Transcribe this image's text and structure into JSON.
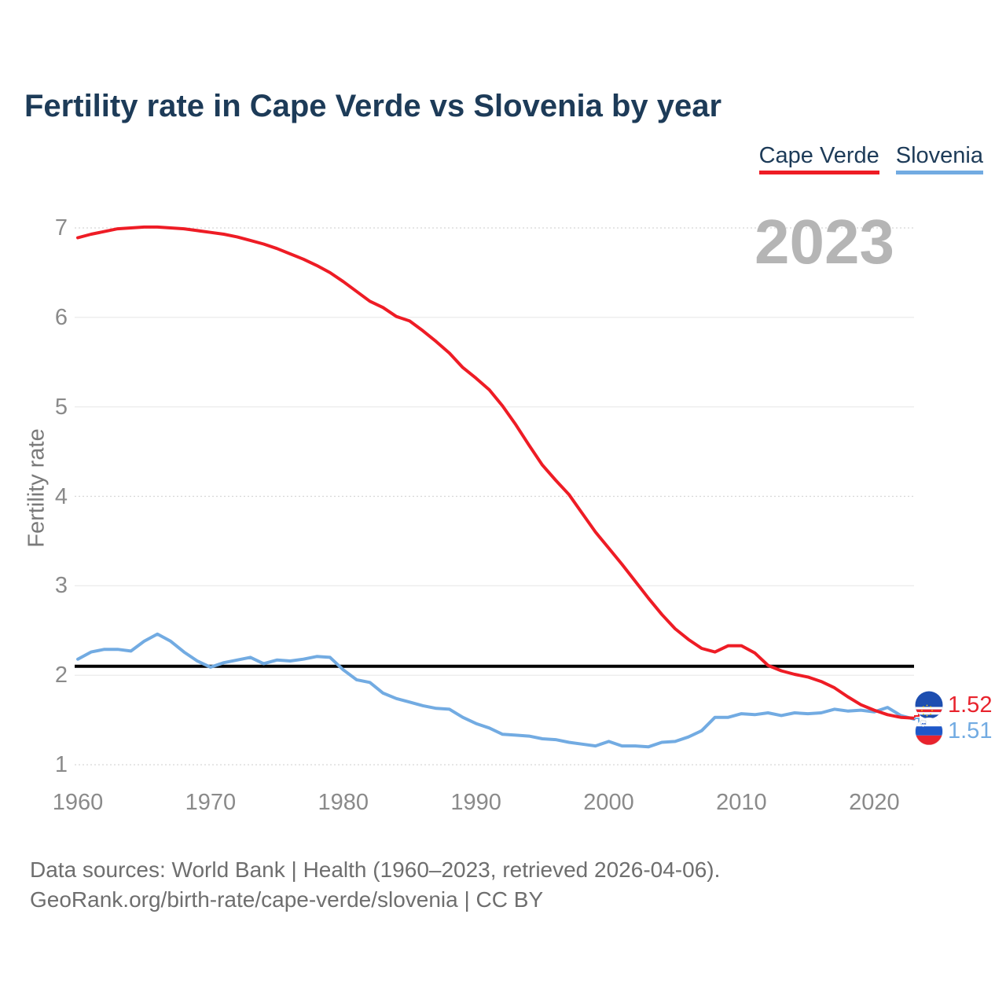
{
  "title": "Fertility rate in Cape Verde vs Slovenia by year",
  "watermark": "2023",
  "legend": {
    "items": [
      {
        "label": "Cape Verde",
        "color": "#ee1c25"
      },
      {
        "label": "Slovenia",
        "color": "#72abe2"
      }
    ]
  },
  "end_labels": {
    "cape_verde": "1.52",
    "slovenia": "1.51"
  },
  "footer": {
    "line1": "Data sources: World Bank | Health (1960–2023, retrieved 2026-04-06).",
    "line2": "GeoRank.org/birth-rate/cape-verde/slovenia | CC BY"
  },
  "colors": {
    "title_text": "#1d3b58",
    "cape_verde": "#ee1c25",
    "slovenia": "#72abe2",
    "reference_line": "#000000",
    "watermark": "#b5b5b5",
    "axis_text": "#8a8a8a"
  },
  "chart_data": {
    "type": "line",
    "title": "Fertility rate in Cape Verde vs Slovenia by year",
    "xlabel": "",
    "ylabel": "Fertility rate",
    "xlim": [
      1960,
      2023
    ],
    "ylim": [
      1,
      7
    ],
    "x_ticks": [
      1960,
      1970,
      1980,
      1990,
      2000,
      2010,
      2020
    ],
    "y_ticks": [
      1,
      2,
      3,
      4,
      5,
      6,
      7
    ],
    "grid": true,
    "legend_position": "top-right",
    "reference_line": {
      "value": 2.1,
      "color": "#000000"
    },
    "years": [
      1960,
      1961,
      1962,
      1963,
      1964,
      1965,
      1966,
      1967,
      1968,
      1969,
      1970,
      1971,
      1972,
      1973,
      1974,
      1975,
      1976,
      1977,
      1978,
      1979,
      1980,
      1981,
      1982,
      1983,
      1984,
      1985,
      1986,
      1987,
      1988,
      1989,
      1990,
      1991,
      1992,
      1993,
      1994,
      1995,
      1996,
      1997,
      1998,
      1999,
      2000,
      2001,
      2002,
      2003,
      2004,
      2005,
      2006,
      2007,
      2008,
      2009,
      2010,
      2011,
      2012,
      2013,
      2014,
      2015,
      2016,
      2017,
      2018,
      2019,
      2020,
      2021,
      2022,
      2023
    ],
    "series": [
      {
        "name": "Cape Verde",
        "color": "#ee1c25",
        "end_label": "1.52",
        "values": [
          6.89,
          6.93,
          6.96,
          6.99,
          7.0,
          7.01,
          7.01,
          7.0,
          6.99,
          6.97,
          6.95,
          6.93,
          6.9,
          6.86,
          6.82,
          6.77,
          6.71,
          6.65,
          6.58,
          6.5,
          6.4,
          6.29,
          6.18,
          6.11,
          6.01,
          5.96,
          5.85,
          5.73,
          5.6,
          5.44,
          5.32,
          5.19,
          5.01,
          4.8,
          4.57,
          4.35,
          4.18,
          4.02,
          3.81,
          3.6,
          3.42,
          3.24,
          3.05,
          2.86,
          2.68,
          2.52,
          2.4,
          2.3,
          2.26,
          2.33,
          2.33,
          2.25,
          2.11,
          2.05,
          2.01,
          1.98,
          1.93,
          1.86,
          1.76,
          1.67,
          1.61,
          1.56,
          1.53,
          1.52
        ]
      },
      {
        "name": "Slovenia",
        "color": "#72abe2",
        "end_label": "1.51",
        "values": [
          2.18,
          2.26,
          2.29,
          2.29,
          2.27,
          2.38,
          2.46,
          2.38,
          2.26,
          2.16,
          2.09,
          2.14,
          2.17,
          2.2,
          2.13,
          2.17,
          2.16,
          2.18,
          2.21,
          2.2,
          2.06,
          1.95,
          1.92,
          1.8,
          1.74,
          1.7,
          1.66,
          1.63,
          1.62,
          1.53,
          1.46,
          1.41,
          1.34,
          1.33,
          1.32,
          1.29,
          1.28,
          1.25,
          1.23,
          1.21,
          1.26,
          1.21,
          1.21,
          1.2,
          1.25,
          1.26,
          1.31,
          1.38,
          1.53,
          1.53,
          1.57,
          1.56,
          1.58,
          1.55,
          1.58,
          1.57,
          1.58,
          1.62,
          1.6,
          1.61,
          1.59,
          1.64,
          1.55,
          1.51
        ]
      }
    ]
  }
}
